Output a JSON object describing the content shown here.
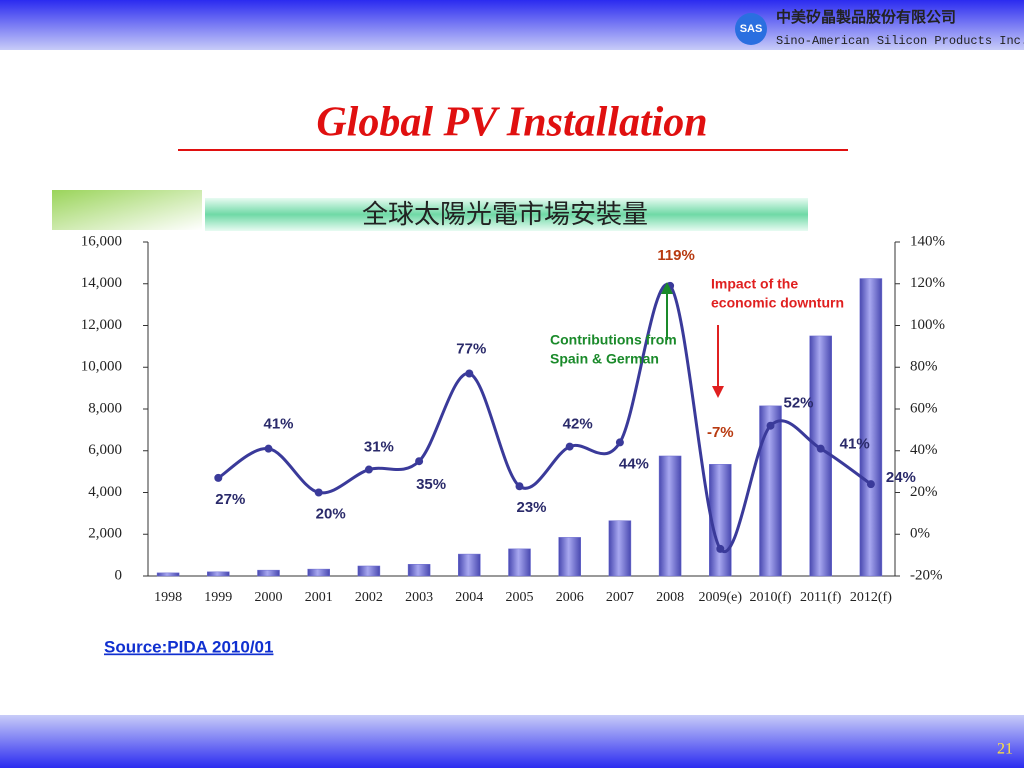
{
  "header": {
    "company_cn": "中美矽晶製品股份有限公司",
    "company_en": "Sino-American Silicon Products Inc.",
    "logo": "SAS"
  },
  "title": "Global PV Installation",
  "chart_data": {
    "type": "bar",
    "title": "全球太陽光電市場安裝量",
    "categories": [
      "1998",
      "1999",
      "2000",
      "2001",
      "2002",
      "2003",
      "2004",
      "2005",
      "2006",
      "2007",
      "2008",
      "2009(e)",
      "2010(f)",
      "2011(f)",
      "2012(f)"
    ],
    "series": [
      {
        "color": "#6a6ad0",
        "values": [
          150,
          200,
          280,
          330,
          480,
          560,
          1050,
          1300,
          1850,
          2650,
          5750,
          5350,
          8150,
          11500,
          14250
        ]
      },
      {
        "type": "line",
        "axis": "y2",
        "color": "#3a3a9a",
        "values": [
          null,
          27,
          41,
          20,
          31,
          35,
          77,
          23,
          42,
          44,
          119,
          -7,
          52,
          41,
          24
        ],
        "value_labels": [
          null,
          "27%",
          "41%",
          "20%",
          "31%",
          "35%",
          "77%",
          "23%",
          "42%",
          "44%",
          "119%",
          "-7%",
          "52%",
          "41%",
          "24%"
        ]
      }
    ],
    "ylim": [
      0,
      16000
    ],
    "yticks": [
      0,
      {
        "value": 2000,
        "label": "2,000"
      },
      {
        "value": 4000,
        "label": "4,000"
      },
      {
        "value": 6000,
        "label": "6,000"
      },
      {
        "value": 8000,
        "label": "8,000"
      },
      {
        "value": 10000,
        "label": "10,000"
      },
      {
        "value": 12000,
        "label": "12,000"
      },
      {
        "value": 14000,
        "label": "14,000"
      },
      {
        "value": 16000,
        "label": "16,000"
      }
    ],
    "y2lim": [
      -20,
      140
    ],
    "y2ticks": [
      {
        "value": -20,
        "label": "-20%"
      },
      {
        "value": 0,
        "label": "0%"
      },
      {
        "value": 20,
        "label": "20%"
      },
      {
        "value": 40,
        "label": "40%"
      },
      {
        "value": 60,
        "label": "60%"
      },
      {
        "value": 80,
        "label": "80%"
      },
      {
        "value": 100,
        "label": "100%"
      },
      {
        "value": 120,
        "label": "120%"
      },
      {
        "value": 140,
        "label": "140%"
      }
    ],
    "annotations": [
      {
        "lines": [
          "Contributions from",
          "Spain & German"
        ],
        "color": "#1a8a2a"
      },
      {
        "lines": [
          "Impact of the",
          "economic downturn"
        ],
        "color": "#e02020"
      }
    ]
  },
  "source": "Source:PIDA 2010/01",
  "page_number": "21"
}
